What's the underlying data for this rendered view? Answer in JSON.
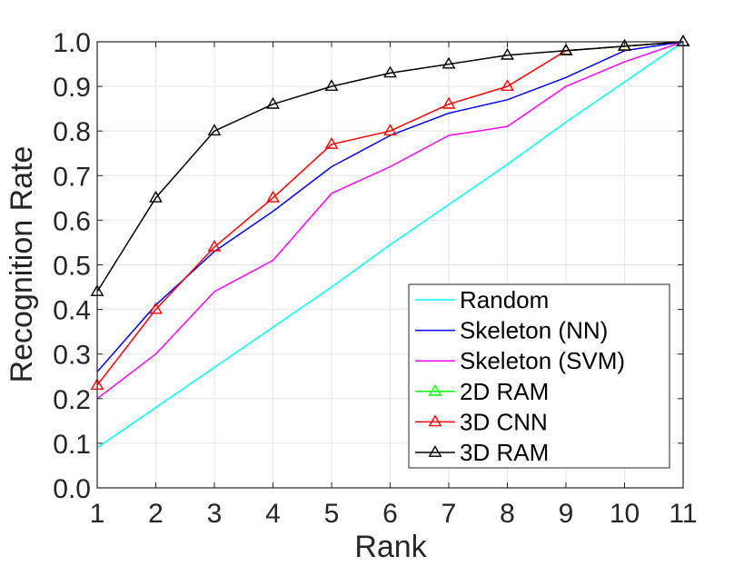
{
  "chart_data": {
    "type": "line",
    "title": "",
    "xlabel": "Rank",
    "ylabel": "Recognition Rate",
    "x": [
      1,
      2,
      3,
      4,
      5,
      6,
      7,
      8,
      9,
      10,
      11
    ],
    "xticks": [
      "1",
      "2",
      "3",
      "4",
      "5",
      "6",
      "7",
      "8",
      "9",
      "10",
      "11"
    ],
    "yticks": [
      "0.0",
      "0.1",
      "0.2",
      "0.3",
      "0.4",
      "0.5",
      "0.6",
      "0.7",
      "0.8",
      "0.9",
      "1.0"
    ],
    "xlim": [
      1,
      11
    ],
    "ylim": [
      0,
      1
    ],
    "grid": true,
    "legend_position": "bottom-right",
    "series": [
      {
        "name": "Random",
        "color": "#00ffff",
        "marker": "none",
        "values": [
          0.09,
          0.18,
          0.27,
          0.36,
          0.45,
          0.545,
          0.635,
          0.725,
          0.82,
          0.91,
          1.0
        ]
      },
      {
        "name": "Skeleton (NN)",
        "color": "#0000ff",
        "marker": "none",
        "values": [
          0.26,
          0.41,
          0.53,
          0.62,
          0.72,
          0.79,
          0.84,
          0.87,
          0.92,
          0.98,
          1.0
        ]
      },
      {
        "name": "Skeleton (SVM)",
        "color": "#ff00ff",
        "marker": "none",
        "values": [
          0.2,
          0.3,
          0.44,
          0.51,
          0.66,
          0.72,
          0.79,
          0.81,
          0.9,
          0.955,
          1.0
        ]
      },
      {
        "name": "2D RAM",
        "color": "#00ff00",
        "marker": "triangle",
        "values": [
          null,
          null,
          null,
          null,
          null,
          null,
          null,
          null,
          0.98,
          0.99,
          1.0
        ]
      },
      {
        "name": "3D CNN",
        "color": "#ff0000",
        "marker": "triangle",
        "values": [
          0.23,
          0.4,
          0.54,
          0.65,
          0.77,
          0.8,
          0.86,
          0.9,
          0.98,
          0.99,
          1.0
        ]
      },
      {
        "name": "3D RAM",
        "color": "#000000",
        "marker": "triangle",
        "values": [
          0.44,
          0.65,
          0.8,
          0.86,
          0.9,
          0.93,
          0.95,
          0.97,
          0.98,
          0.99,
          1.0
        ]
      }
    ]
  }
}
